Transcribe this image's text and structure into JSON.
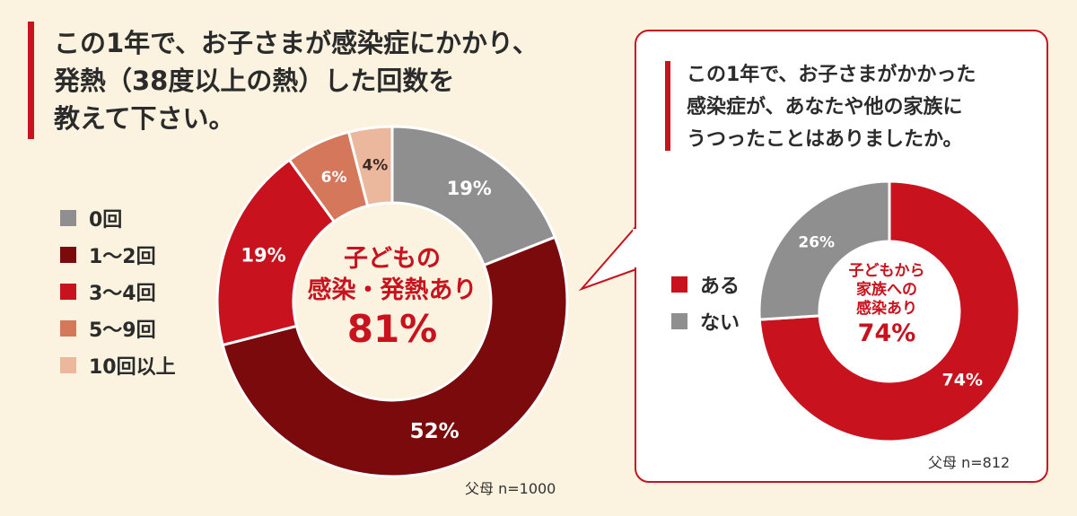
{
  "colors": {
    "background": "#fbf2df",
    "accent": "#c8131f",
    "zero": "#8f8f8f",
    "one_two": "#7a0a0c",
    "three_four": "#c8131f",
    "five_nine": "#d5775a",
    "ten_plus": "#ebb89e",
    "yes": "#c8131f",
    "no": "#8f8f8f"
  },
  "chart_data": [
    {
      "type": "pie",
      "question_lines": [
        "この1年で、お子さまが感染症にかかり、",
        "発熱（38度以上の熱）した回数を",
        "教えて下さい。"
      ],
      "categories": [
        "0回",
        "1〜2回",
        "3〜4回",
        "5〜9回",
        "10回以上"
      ],
      "values": [
        19,
        52,
        19,
        6,
        4
      ],
      "value_labels": [
        "19%",
        "52%",
        "19%",
        "6%",
        "4%"
      ],
      "center_label_lines": [
        "子どもの",
        "感染・発熱あり"
      ],
      "center_value": "81%",
      "sample": "父母 n=1000",
      "legend_position": "left"
    },
    {
      "type": "pie",
      "question_lines": [
        "この1年で、お子さまがかかった",
        "感染症が、あなたや他の家族に",
        "うつったことはありましたか。"
      ],
      "categories": [
        "ある",
        "ない"
      ],
      "values": [
        74,
        26
      ],
      "value_labels": [
        "74%",
        "26%"
      ],
      "center_label_lines": [
        "子どもから",
        "家族への",
        "感染あり"
      ],
      "center_value": "74%",
      "sample": "父母 n=812",
      "legend_position": "left"
    }
  ]
}
